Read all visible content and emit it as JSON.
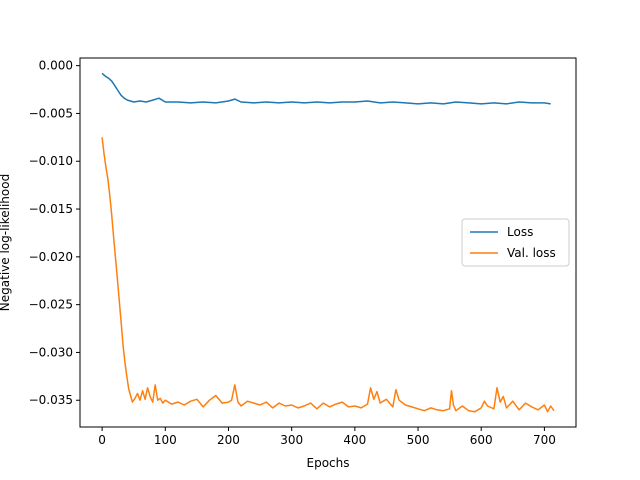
{
  "chart_data": {
    "type": "line",
    "xlabel": "Epochs",
    "ylabel": "Negative log-likelihood",
    "xlim": [
      -35,
      750
    ],
    "ylim": [
      -0.0378,
      0.0008
    ],
    "xticks": [
      0,
      100,
      200,
      300,
      400,
      500,
      600,
      700
    ],
    "yticks": [
      0.0,
      -0.005,
      -0.01,
      -0.015,
      -0.02,
      -0.025,
      -0.03,
      -0.035
    ],
    "ytick_labels": [
      "0.000",
      "−0.005",
      "−0.010",
      "−0.015",
      "−0.020",
      "−0.025",
      "−0.030",
      "−0.035"
    ],
    "grid": false,
    "legend_position": "center-right",
    "series": [
      {
        "name": "Loss",
        "color": "#1f77b4",
        "x": [
          0,
          5,
          10,
          15,
          20,
          25,
          30,
          35,
          40,
          45,
          50,
          60,
          70,
          80,
          90,
          100,
          120,
          140,
          160,
          180,
          200,
          210,
          220,
          240,
          260,
          280,
          300,
          320,
          340,
          360,
          380,
          400,
          420,
          440,
          460,
          480,
          500,
          520,
          540,
          560,
          580,
          600,
          620,
          640,
          660,
          680,
          700,
          710
        ],
        "y": [
          -0.0008,
          -0.0011,
          -0.0013,
          -0.0016,
          -0.0021,
          -0.0026,
          -0.0031,
          -0.0034,
          -0.0036,
          -0.0037,
          -0.0038,
          -0.0037,
          -0.0038,
          -0.0036,
          -0.0034,
          -0.0038,
          -0.0038,
          -0.0039,
          -0.0038,
          -0.0039,
          -0.0037,
          -0.0035,
          -0.0038,
          -0.0039,
          -0.0038,
          -0.0039,
          -0.0038,
          -0.0039,
          -0.0038,
          -0.0039,
          -0.0038,
          -0.0038,
          -0.0037,
          -0.0039,
          -0.0038,
          -0.0039,
          -0.004,
          -0.0039,
          -0.004,
          -0.0038,
          -0.0039,
          -0.004,
          -0.0039,
          -0.004,
          -0.0038,
          -0.0039,
          -0.0039,
          -0.004
        ]
      },
      {
        "name": "Val. loss",
        "color": "#ff7f0e",
        "x": [
          0,
          3,
          6,
          9,
          12,
          15,
          18,
          21,
          24,
          27,
          30,
          33,
          36,
          39,
          42,
          45,
          48,
          52,
          56,
          60,
          64,
          68,
          72,
          76,
          80,
          84,
          88,
          92,
          96,
          100,
          110,
          120,
          130,
          140,
          150,
          160,
          170,
          180,
          190,
          200,
          205,
          210,
          215,
          220,
          230,
          240,
          250,
          260,
          270,
          280,
          290,
          300,
          310,
          320,
          330,
          340,
          350,
          360,
          370,
          380,
          390,
          400,
          410,
          420,
          425,
          430,
          435,
          440,
          450,
          460,
          465,
          470,
          480,
          490,
          500,
          510,
          520,
          530,
          540,
          550,
          553,
          556,
          560,
          570,
          580,
          590,
          600,
          605,
          610,
          620,
          625,
          630,
          635,
          640,
          650,
          660,
          670,
          680,
          690,
          700,
          705,
          710,
          715
        ],
        "y": [
          -0.0075,
          -0.0092,
          -0.0106,
          -0.0118,
          -0.0135,
          -0.0155,
          -0.0178,
          -0.02,
          -0.0222,
          -0.0245,
          -0.0268,
          -0.0292,
          -0.031,
          -0.0325,
          -0.0338,
          -0.0345,
          -0.0352,
          -0.0348,
          -0.0343,
          -0.035,
          -0.034,
          -0.0349,
          -0.0337,
          -0.0346,
          -0.0352,
          -0.0334,
          -0.035,
          -0.0348,
          -0.0353,
          -0.035,
          -0.0354,
          -0.0352,
          -0.0355,
          -0.0351,
          -0.0349,
          -0.0357,
          -0.035,
          -0.0345,
          -0.0353,
          -0.0352,
          -0.035,
          -0.0334,
          -0.0352,
          -0.0356,
          -0.0351,
          -0.0353,
          -0.0355,
          -0.0352,
          -0.0358,
          -0.0353,
          -0.0356,
          -0.0355,
          -0.0358,
          -0.0356,
          -0.0353,
          -0.0359,
          -0.0353,
          -0.0357,
          -0.0354,
          -0.0352,
          -0.0357,
          -0.0356,
          -0.0358,
          -0.0354,
          -0.0337,
          -0.0349,
          -0.0341,
          -0.0353,
          -0.0349,
          -0.0357,
          -0.0339,
          -0.035,
          -0.0355,
          -0.0357,
          -0.0359,
          -0.0361,
          -0.0358,
          -0.036,
          -0.0361,
          -0.0359,
          -0.034,
          -0.0355,
          -0.0361,
          -0.0356,
          -0.0361,
          -0.0362,
          -0.0358,
          -0.0351,
          -0.0356,
          -0.0359,
          -0.0337,
          -0.0352,
          -0.0346,
          -0.0358,
          -0.0351,
          -0.036,
          -0.0353,
          -0.0357,
          -0.036,
          -0.0355,
          -0.0362,
          -0.0356,
          -0.0361
        ]
      }
    ]
  }
}
